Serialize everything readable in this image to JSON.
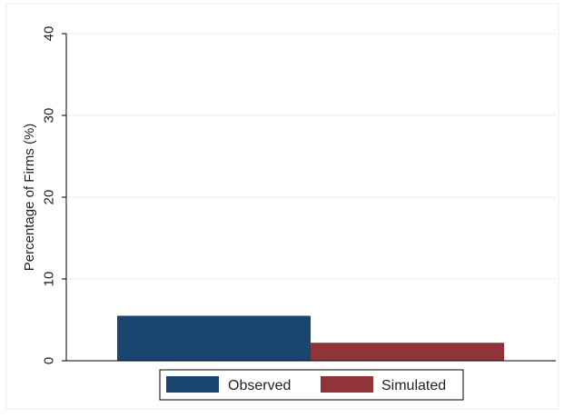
{
  "chart_data": {
    "type": "bar",
    "title": "",
    "xlabel": "",
    "ylabel": "Percentage of Firms (%)",
    "ylim": [
      0,
      40
    ],
    "yticks": [
      0,
      10,
      20,
      30,
      40
    ],
    "grid": true,
    "legend_position": "bottom",
    "series": [
      {
        "name": "Observed",
        "value": 5.5,
        "color": "#1a4570"
      },
      {
        "name": "Simulated",
        "value": 2.2,
        "color": "#913439"
      }
    ]
  }
}
